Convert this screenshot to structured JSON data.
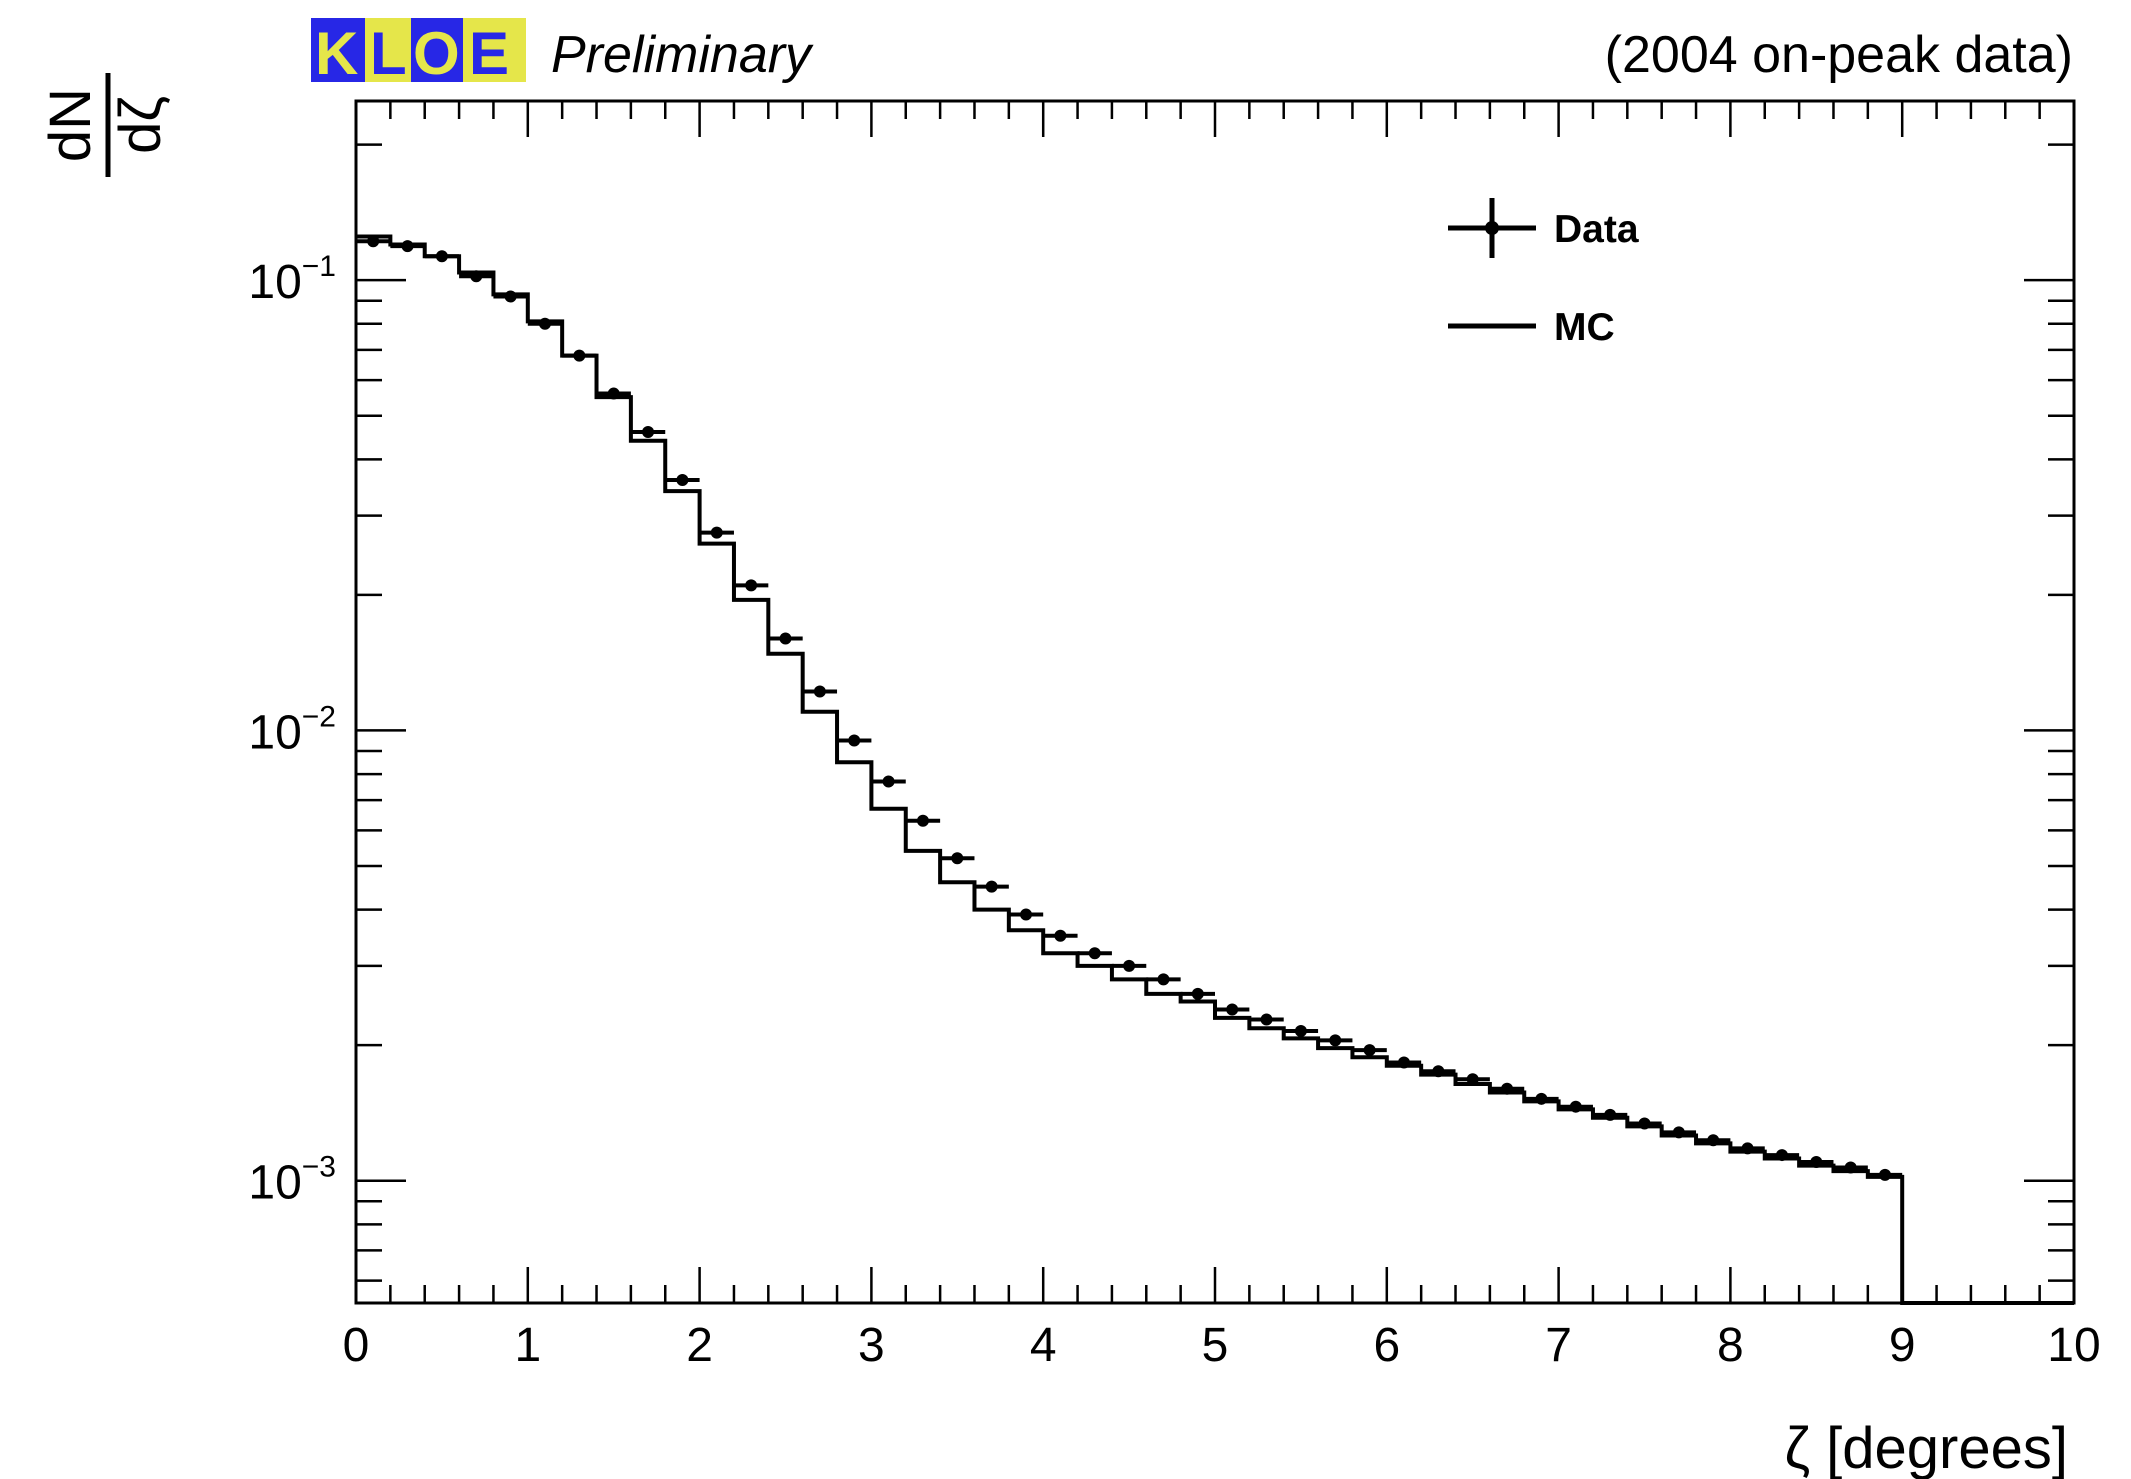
{
  "header": {
    "logo": {
      "letters": [
        "K",
        "L",
        "O",
        "E"
      ],
      "blue": "#2727e6",
      "yellow": "#e5e64a"
    },
    "preliminary": "Preliminary",
    "run_label": "(2004 on-peak data)"
  },
  "legend": {
    "data_label": "Data",
    "mc_label": "MC"
  },
  "chart_data": {
    "type": "histogram",
    "xlabel": "ζ [degrees]",
    "ylabel_numerator": "dN",
    "ylabel_denominator": "dζ",
    "xlim": [
      0,
      10
    ],
    "ylim": [
      0.000535,
      0.25
    ],
    "yscale": "log",
    "bin_width": 0.2,
    "x_ticks": [
      "0",
      "1",
      "2",
      "3",
      "4",
      "5",
      "6",
      "7",
      "8",
      "9",
      "10"
    ],
    "y_ticks": [
      {
        "value": 0.1,
        "base": "10",
        "exp": "−1"
      },
      {
        "value": 0.01,
        "base": "10",
        "exp": "−2"
      },
      {
        "value": 0.001,
        "base": "10",
        "exp": "−3"
      }
    ],
    "bin_edges_start": 0,
    "series": [
      {
        "name": "Data",
        "style": "points-with-errors",
        "color": "#000000",
        "x": [
          0.1,
          0.3,
          0.5,
          0.7,
          0.9,
          1.1,
          1.3,
          1.5,
          1.7,
          1.9,
          2.1,
          2.3,
          2.5,
          2.7,
          2.9,
          3.1,
          3.3,
          3.5,
          3.7,
          3.9,
          4.1,
          4.3,
          4.5,
          4.7,
          4.9,
          5.1,
          5.3,
          5.5,
          5.7,
          5.9,
          6.1,
          6.3,
          6.5,
          6.7,
          6.9,
          7.1,
          7.3,
          7.5,
          7.7,
          7.9,
          8.1,
          8.3,
          8.5,
          8.7,
          8.9
        ],
        "values": [
          0.122,
          0.119,
          0.113,
          0.102,
          0.092,
          0.08,
          0.068,
          0.056,
          0.046,
          0.036,
          0.0275,
          0.021,
          0.016,
          0.0122,
          0.0095,
          0.0077,
          0.0063,
          0.0052,
          0.0045,
          0.0039,
          0.0035,
          0.0032,
          0.003,
          0.0028,
          0.0026,
          0.0024,
          0.00228,
          0.00215,
          0.00205,
          0.00195,
          0.00183,
          0.00175,
          0.00168,
          0.0016,
          0.00152,
          0.00146,
          0.0014,
          0.00134,
          0.00128,
          0.00123,
          0.00118,
          0.00114,
          0.0011,
          0.00107,
          0.00103
        ]
      },
      {
        "name": "MC",
        "style": "step",
        "color": "#000000",
        "values": [
          0.125,
          0.12,
          0.113,
          0.104,
          0.093,
          0.081,
          0.068,
          0.055,
          0.044,
          0.034,
          0.026,
          0.0195,
          0.0148,
          0.011,
          0.0085,
          0.0067,
          0.0054,
          0.0046,
          0.004,
          0.0036,
          0.0032,
          0.003,
          0.0028,
          0.0026,
          0.0025,
          0.0023,
          0.00218,
          0.00207,
          0.00197,
          0.00188,
          0.0018,
          0.00172,
          0.00164,
          0.00157,
          0.0015,
          0.00144,
          0.00138,
          0.00132,
          0.00126,
          0.00121,
          0.00116,
          0.00112,
          0.00108,
          0.00105,
          0.00102,
          0.000535,
          0.000535,
          0.000535,
          0.000535,
          0.000535
        ]
      }
    ]
  }
}
